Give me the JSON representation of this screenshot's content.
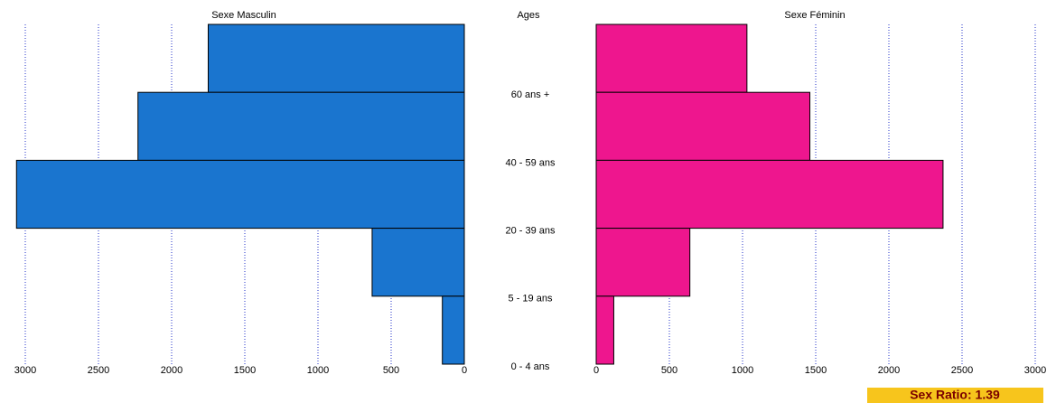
{
  "chart_data": {
    "type": "bar",
    "x_label": "Ages",
    "categories": [
      "60 ans +",
      "40 - 59 ans",
      "20 - 39 ans",
      "5 - 19 ans",
      "0 - 4 ans"
    ],
    "series": [
      {
        "name": "Sexe Masculin",
        "color": "#1a75cf",
        "values": [
          1750,
          2230,
          3060,
          630,
          150
        ]
      },
      {
        "name": "Sexe Féminin",
        "color": "#ee168e",
        "values": [
          1030,
          1460,
          2370,
          640,
          120
        ]
      }
    ],
    "xlim": [
      0,
      3000
    ],
    "xticks": [
      0,
      500,
      1000,
      1500,
      2000,
      2500,
      3000
    ],
    "grid": true,
    "annotation": "Sex Ratio: 1.39"
  }
}
